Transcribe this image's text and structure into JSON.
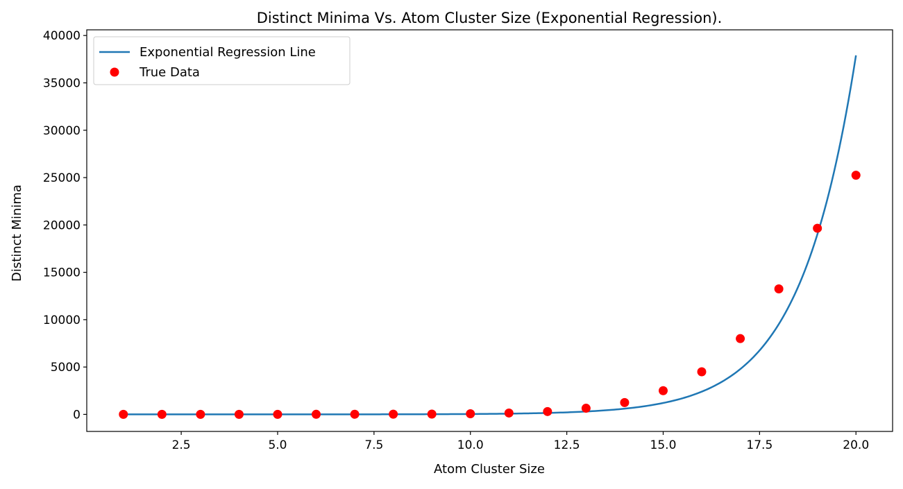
{
  "chart_data": {
    "type": "scatter",
    "title": "Distinct Minima Vs. Atom Cluster Size (Exponential Regression).",
    "xlabel": "Atom Cluster Size",
    "ylabel": "Distinct Minima",
    "xlim": [
      0.05,
      20.95
    ],
    "ylim": [
      -1800,
      40600
    ],
    "x_ticks": [
      2.5,
      5.0,
      7.5,
      10.0,
      12.5,
      15.0,
      17.5,
      20.0
    ],
    "x_tick_labels": [
      "2.5",
      "5.0",
      "7.5",
      "10.0",
      "12.5",
      "15.0",
      "17.5",
      "20.0"
    ],
    "y_ticks": [
      0,
      5000,
      10000,
      15000,
      20000,
      25000,
      30000,
      35000,
      40000
    ],
    "y_tick_labels": [
      "0",
      "5000",
      "10000",
      "15000",
      "20000",
      "25000",
      "30000",
      "35000",
      "40000"
    ],
    "grid": false,
    "legend_position": "top-left",
    "series": [
      {
        "name": "Exponential Regression Line",
        "kind": "line",
        "color": "#1f77b4",
        "x_range": [
          1,
          20
        ],
        "model": "y = a * exp(b * x)",
        "a": 0.0385,
        "b": 0.69
      },
      {
        "name": "True Data",
        "kind": "scatter",
        "color": "#ff0000",
        "x": [
          1,
          2,
          3,
          4,
          5,
          6,
          7,
          8,
          9,
          10,
          11,
          12,
          13,
          14,
          15,
          16,
          17,
          18,
          19,
          20
        ],
        "y": [
          1,
          1,
          1,
          2,
          4,
          8,
          16,
          23,
          33,
          65,
          145,
          300,
          650,
          1250,
          2500,
          4500,
          8000,
          13250,
          19650,
          25250
        ]
      }
    ]
  }
}
